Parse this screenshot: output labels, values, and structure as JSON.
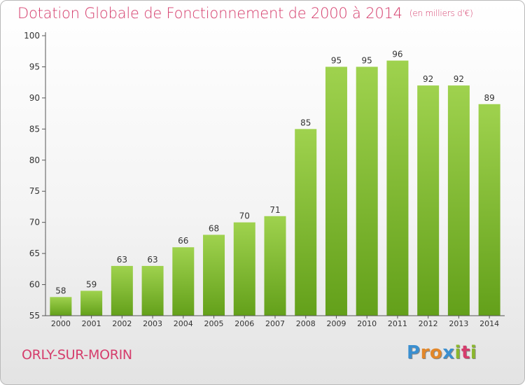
{
  "chart_data": {
    "type": "bar",
    "title": "Dotation Globale de Fonctionnement de 2000 à 2014",
    "subtitle": "(en milliers d'€)",
    "categories": [
      "2000",
      "2001",
      "2002",
      "2003",
      "2004",
      "2005",
      "2006",
      "2007",
      "2008",
      "2009",
      "2010",
      "2011",
      "2012",
      "2013",
      "2014"
    ],
    "values": [
      58,
      59,
      63,
      63,
      66,
      68,
      70,
      71,
      85,
      95,
      95,
      96,
      92,
      92,
      89
    ],
    "ylim": [
      55,
      100
    ],
    "yticks": [
      55,
      60,
      65,
      70,
      75,
      80,
      85,
      90,
      95,
      100
    ],
    "xlabel": "",
    "ylabel": "",
    "grid": false,
    "bar_color_top": "#9fd24e",
    "bar_color_bottom": "#63a01a"
  },
  "footer": {
    "commune": "ORLY-SUR-MORIN",
    "logo_letters": [
      "P",
      "r",
      "o",
      "x",
      "i",
      "t",
      "i"
    ],
    "logo_colors": [
      "#3a8fd0",
      "#e2872a",
      "#e2872a",
      "#3a8fd0",
      "#8ab72d",
      "#d53d6c",
      "#8ab72d"
    ]
  }
}
